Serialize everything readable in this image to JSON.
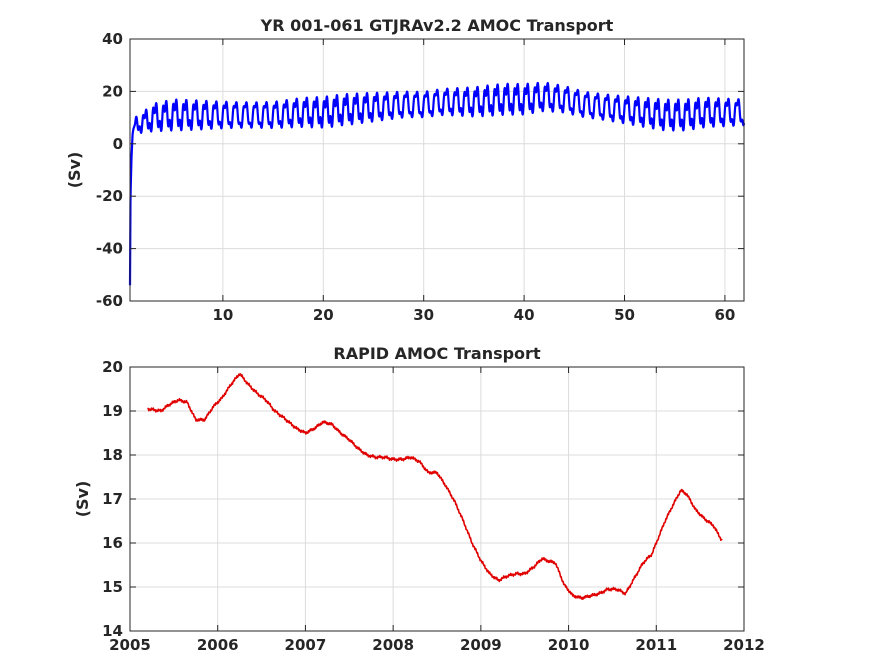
{
  "chart_data": [
    {
      "type": "line",
      "title": "YR 001-061 GTJRAv2.2 AMOC Transport",
      "xlabel": "",
      "ylabel": "(Sv)",
      "xlim": [
        0.75,
        61.9
      ],
      "ylim": [
        -60,
        40
      ],
      "xticks": [
        10,
        20,
        30,
        40,
        50,
        60
      ],
      "yticks": [
        -60,
        -40,
        -20,
        0,
        20,
        40
      ],
      "grid": true,
      "series": [
        {
          "color": "#0000ff",
          "description_of_shape": "annual cycle with amplitude ~5 Sv around a slowly varying mean",
          "x": [
            0.75,
            0.8,
            0.9,
            1.0,
            1.2,
            1.5,
            2,
            3,
            5,
            8,
            10,
            12,
            15,
            18,
            20,
            22,
            25,
            28,
            30,
            32,
            35,
            38,
            40,
            42,
            44,
            46,
            48,
            50,
            52,
            54,
            56,
            58,
            60,
            61.9
          ],
          "mean": [
            -54,
            -20,
            -5,
            3,
            6,
            8,
            8,
            10,
            11,
            11,
            11,
            11,
            11,
            12,
            12,
            13,
            14,
            15,
            15,
            16,
            16,
            17,
            17,
            18,
            17,
            15,
            14,
            13,
            12,
            11,
            11,
            12,
            12,
            12
          ],
          "amplitude": [
            0,
            0,
            0,
            1,
            2,
            3,
            3,
            4,
            4.5,
            4.5,
            4.5,
            4.5,
            4.5,
            4.5,
            4.5,
            4.5,
            4.5,
            4.5,
            4.5,
            4.5,
            4.5,
            4.5,
            4.5,
            4.5,
            4.5,
            4.5,
            4.5,
            4.5,
            4.5,
            4.5,
            4.5,
            4.5,
            4.5,
            4.5
          ]
        }
      ]
    },
    {
      "type": "line",
      "title": "RAPID AMOC Transport",
      "xlabel": "",
      "ylabel": "(Sv)",
      "xlim": [
        2005,
        2012
      ],
      "ylim": [
        14,
        20
      ],
      "xticks": [
        2005,
        2006,
        2007,
        2008,
        2009,
        2010,
        2011,
        2012
      ],
      "yticks": [
        14,
        15,
        16,
        17,
        18,
        19,
        20
      ],
      "grid": true,
      "series": [
        {
          "color": "#e00000",
          "x": [
            2005.2,
            2005.35,
            2005.45,
            2005.55,
            2005.65,
            2005.75,
            2005.85,
            2005.95,
            2006.05,
            2006.15,
            2006.25,
            2006.35,
            2006.45,
            2006.55,
            2006.65,
            2006.75,
            2006.9,
            2007.0,
            2007.1,
            2007.2,
            2007.3,
            2007.4,
            2007.5,
            2007.6,
            2007.7,
            2007.8,
            2007.9,
            2008.0,
            2008.1,
            2008.2,
            2008.3,
            2008.4,
            2008.5,
            2008.6,
            2008.7,
            2008.8,
            2008.9,
            2009.0,
            2009.1,
            2009.2,
            2009.3,
            2009.4,
            2009.5,
            2009.6,
            2009.7,
            2009.75,
            2009.85,
            2009.95,
            2010.05,
            2010.15,
            2010.25,
            2010.35,
            2010.45,
            2010.55,
            2010.65,
            2010.75,
            2010.85,
            2010.95,
            2011.0,
            2011.1,
            2011.2,
            2011.28,
            2011.35,
            2011.45,
            2011.55,
            2011.65,
            2011.75
          ],
          "y": [
            19.05,
            19.0,
            19.15,
            19.25,
            19.2,
            18.8,
            18.8,
            19.1,
            19.3,
            19.6,
            19.85,
            19.6,
            19.4,
            19.25,
            19.0,
            18.85,
            18.6,
            18.5,
            18.6,
            18.75,
            18.7,
            18.5,
            18.35,
            18.15,
            18.0,
            17.95,
            17.95,
            17.9,
            17.9,
            17.95,
            17.85,
            17.6,
            17.6,
            17.3,
            16.95,
            16.5,
            16.0,
            15.6,
            15.3,
            15.15,
            15.25,
            15.3,
            15.3,
            15.45,
            15.65,
            15.6,
            15.55,
            15.05,
            14.8,
            14.75,
            14.8,
            14.85,
            14.95,
            14.95,
            14.85,
            15.2,
            15.55,
            15.75,
            16.0,
            16.5,
            16.9,
            17.2,
            17.1,
            16.75,
            16.55,
            16.4,
            16.05
          ]
        }
      ]
    }
  ]
}
